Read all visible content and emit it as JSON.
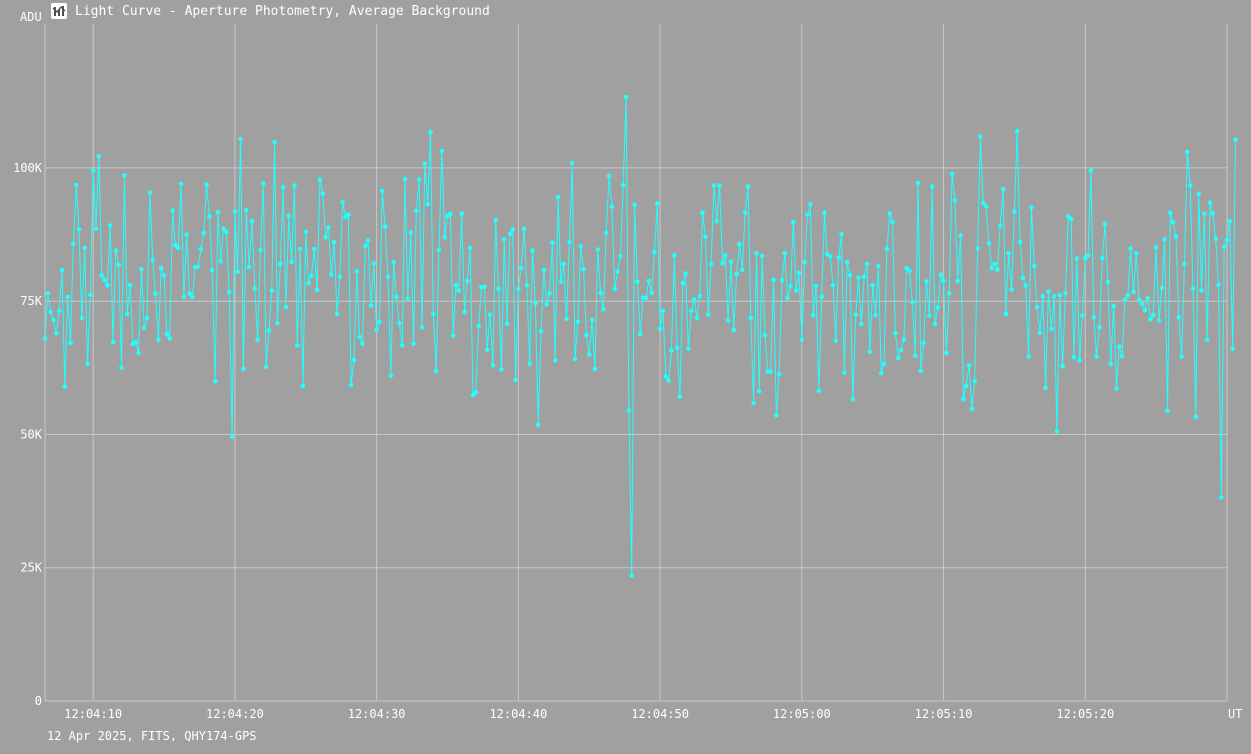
{
  "window": {
    "title": "Light Curve - Aperture Photometry, Average Background",
    "icon": "light-curve-app-icon"
  },
  "footer": {
    "info": "12 Apr 2025, FITS, QHY174-GPS"
  },
  "colors": {
    "background": "#a0a0a0",
    "grid": "#c8c8c8",
    "series": "#22ffff",
    "text": "#ffffff"
  },
  "chart_data": {
    "type": "line",
    "title": "Light Curve - Aperture Photometry, Average Background",
    "y_unit": "ADU",
    "x_unit": "UT",
    "y_ticks": [
      {
        "value": 0,
        "label": "0"
      },
      {
        "value": 25000,
        "label": "25K"
      },
      {
        "value": 50000,
        "label": "50K"
      },
      {
        "value": 75000,
        "label": "75K"
      },
      {
        "value": 100000,
        "label": "100K"
      }
    ],
    "x_ticks": [
      {
        "value": 10,
        "label": "12:04:10"
      },
      {
        "value": 20,
        "label": "12:04:20"
      },
      {
        "value": 30,
        "label": "12:04:30"
      },
      {
        "value": 40,
        "label": "12:04:40"
      },
      {
        "value": 50,
        "label": "12:04:50"
      },
      {
        "value": 60,
        "label": "12:05:00"
      },
      {
        "value": 70,
        "label": "12:05:10"
      },
      {
        "value": 80,
        "label": "12:05:20"
      }
    ],
    "x_range": [
      6.6,
      90
    ],
    "y_range": [
      0,
      127000
    ],
    "grid": true,
    "legend": "none",
    "series": [
      {
        "x_start": 6.6,
        "x_step": 0.2,
        "values": [
          68000,
          76500,
          73000,
          71500,
          69000,
          73200,
          80800,
          59000,
          75800,
          67200,
          85800,
          96800,
          88500,
          71800,
          85000,
          63300,
          76200,
          99500,
          88600,
          102200,
          79800,
          79000,
          78000,
          89200,
          67300,
          84500,
          81800,
          62500,
          98600,
          72600,
          78000,
          67000,
          67300,
          65300,
          81000,
          70000,
          71800,
          95400,
          82800,
          76400,
          67800,
          81200,
          79800,
          68800,
          68000,
          92000,
          85500,
          85000,
          97000,
          75800,
          87500,
          76400,
          75800,
          81400,
          81500,
          84800,
          87800,
          96900,
          90900,
          80800,
          60000,
          91700,
          82500,
          88600,
          88000,
          76700,
          49600,
          91800,
          80500,
          105400,
          62300,
          92100,
          81400,
          90000,
          77400,
          67800,
          84600,
          97100,
          62700,
          69500,
          77000,
          104800,
          70900,
          82000,
          96400,
          73900,
          91000,
          82400,
          96700,
          66700,
          84800,
          59100,
          88000,
          78400,
          79800,
          84800,
          77100,
          97800,
          95200,
          87000,
          88800,
          80000,
          86100,
          72600,
          79600,
          93600,
          90800,
          91200,
          59300,
          64000,
          80600,
          68300,
          67000,
          85400,
          86400,
          74200,
          82100,
          69600,
          71100,
          95700,
          89000,
          79600,
          61000,
          82300,
          75800,
          70900,
          66700,
          97900,
          75500,
          87900,
          67000,
          92000,
          97800,
          70100,
          100800,
          93200,
          106700,
          72600,
          61900,
          84600,
          103200,
          87000,
          91000,
          91400,
          68500,
          78000,
          77000,
          91400,
          73000,
          78800,
          85000,
          57400,
          57900,
          70400,
          77600,
          77700,
          65900,
          72500,
          63000,
          90200,
          77300,
          62200,
          86600,
          70800,
          87600,
          88500,
          60200,
          77300,
          81300,
          88600,
          78000,
          63300,
          84500,
          74600,
          51800,
          69400,
          80900,
          74400,
          76500,
          86000,
          63900,
          94500,
          78700,
          82000,
          71700,
          86100,
          100900,
          64200,
          71200,
          85300,
          81000,
          68600,
          65000,
          71500,
          62300,
          84700,
          76600,
          73500,
          87800,
          98500,
          92700,
          77300,
          80600,
          83400,
          96800,
          113300,
          54500,
          23500,
          93100,
          78700,
          68800,
          75700,
          75600,
          78800,
          76600,
          84200,
          93300,
          69800,
          73200,
          60900,
          60100,
          65700,
          83600,
          66300,
          57100,
          78400,
          80200,
          66100,
          73200,
          75300,
          71900,
          76000,
          91600,
          87100,
          72500,
          81900,
          96700,
          90000,
          96700,
          82100,
          83600,
          71400,
          82400,
          69600,
          80100,
          85700,
          80900,
          91600,
          96500,
          71900,
          55900,
          84000,
          58100,
          83500,
          68600,
          61800,
          61800,
          79000,
          53600,
          61300,
          78900,
          84000,
          75600,
          77800,
          89800,
          77000,
          80300,
          67800,
          82300,
          91200,
          93200,
          72400,
          77800,
          58200,
          75800,
          91600,
          83800,
          83400,
          78000,
          67600,
          83200,
          87600,
          61600,
          82300,
          79900,
          56600,
          72500,
          79400,
          70700,
          79600,
          82000,
          65500,
          78000,
          72400,
          81600,
          61500,
          63200,
          84800,
          91500,
          89900,
          69000,
          64300,
          65800,
          67800,
          81200,
          80700,
          74800,
          64800,
          97200,
          61900,
          67200,
          78700,
          72300,
          96500,
          70700,
          73800,
          80000,
          78800,
          65300,
          76500,
          98800,
          93900,
          78800,
          87300,
          56600,
          59100,
          63000,
          54800,
          60000,
          84900,
          105900,
          93400,
          92800,
          85900,
          81200,
          82000,
          80900,
          89200,
          96000,
          72600,
          84000,
          77200,
          91800,
          106900,
          86100,
          79400,
          77900,
          64600,
          92600,
          81600,
          73900,
          69100,
          75900,
          58800,
          76800,
          69800,
          75900,
          50600,
          76100,
          62800,
          76500,
          90900,
          90400,
          64500,
          83000,
          63900,
          72300,
          83100,
          83600,
          99500,
          72000,
          64600,
          70100,
          83100,
          89500,
          78600,
          63200,
          74100,
          58600,
          66500,
          64700,
          75300,
          76100,
          84900,
          76800,
          84000,
          75300,
          74500,
          73300,
          75600,
          71600,
          72400,
          85100,
          71400,
          77500,
          86600,
          54400,
          91600,
          89800,
          87200,
          72000,
          64600,
          82000,
          103000,
          96700,
          77400,
          53300,
          95100,
          77000,
          91400,
          67800,
          93500,
          91500,
          86700,
          78100,
          38200,
          85200,
          86500,
          90000,
          66100,
          105300
        ]
      }
    ]
  }
}
